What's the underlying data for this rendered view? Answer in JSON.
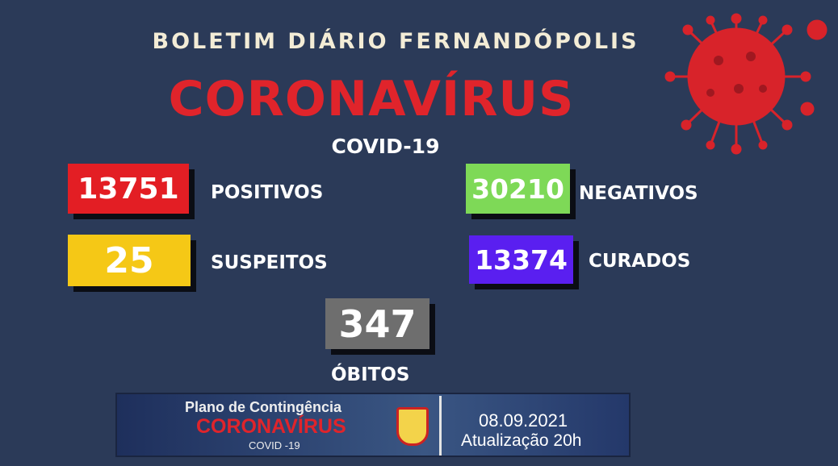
{
  "header": {
    "title": "BOLETIM DIÁRIO FERNANDÓPOLIS",
    "main": "CORONAVÍRUS",
    "sub": "COVID-19"
  },
  "stats": [
    {
      "value": "13751",
      "label": "POSITIVOS",
      "color": "#e31e24"
    },
    {
      "value": "25",
      "label": "SUSPEITOS",
      "color": "#f5c816"
    },
    {
      "value": "30210",
      "label": "NEGATIVOS",
      "color": "#7ed957"
    },
    {
      "value": "13374",
      "label": "CURADOS",
      "color": "#5a1ff0"
    },
    {
      "value": "347",
      "label": "ÓBITOS",
      "color": "#6e6e6e"
    }
  ],
  "banner": {
    "line1": "Plano de Contingência",
    "line2": "CORONAVÍRUS",
    "line3": "COVID -19",
    "date": "08.09.2021",
    "update": "Atualização 20h"
  },
  "icons": {
    "virus": "coronavirus-illustration",
    "crest": "city-crest"
  }
}
